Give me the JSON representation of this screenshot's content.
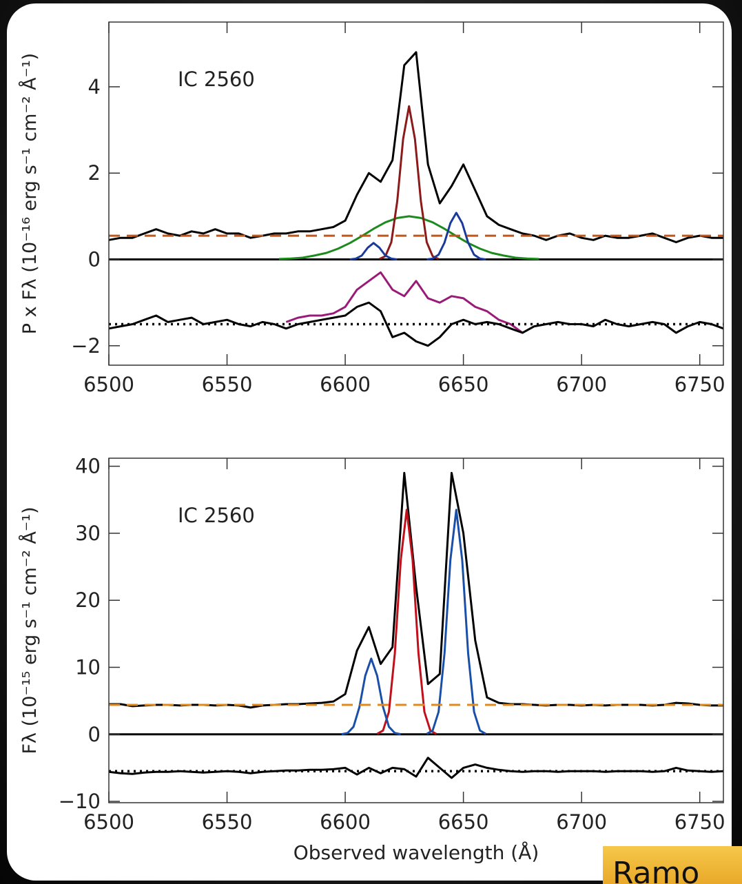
{
  "chart_data": [
    {
      "type": "line",
      "annotation": "IC 2560",
      "ylabel": "P x Fλ (10⁻¹⁶ erg s⁻¹ cm⁻² Å⁻¹)",
      "xlim": [
        6500,
        6760
      ],
      "ylim": [
        -2.45,
        5.5
      ],
      "xticks": [
        6500,
        6550,
        6600,
        6650,
        6700,
        6750
      ],
      "yticks": [
        {
          "value": -2,
          "label": "−2"
        },
        0,
        2,
        4
      ],
      "x": [
        6500,
        6505,
        6510,
        6515,
        6520,
        6525,
        6530,
        6535,
        6540,
        6545,
        6550,
        6555,
        6560,
        6565,
        6570,
        6575,
        6580,
        6585,
        6590,
        6595,
        6600,
        6605,
        6610,
        6615,
        6620,
        6625,
        6630,
        6635,
        6640,
        6645,
        6650,
        6655,
        6660,
        6665,
        6670,
        6675,
        6680,
        6685,
        6690,
        6695,
        6700,
        6705,
        6710,
        6715,
        6720,
        6725,
        6730,
        6735,
        6740,
        6745,
        6750,
        6755,
        6760
      ],
      "series": [
        {
          "color": "#000000",
          "x": [
            6500,
            6760
          ],
          "values": [
            0,
            0
          ]
        },
        {
          "color": "#000000",
          "values": [
            0.45,
            0.5,
            0.5,
            0.6,
            0.7,
            0.6,
            0.55,
            0.65,
            0.6,
            0.7,
            0.6,
            0.6,
            0.5,
            0.55,
            0.6,
            0.6,
            0.65,
            0.65,
            0.7,
            0.75,
            0.9,
            1.5,
            2.0,
            1.8,
            2.3,
            4.5,
            4.8,
            2.2,
            1.3,
            1.7,
            2.2,
            1.6,
            1.0,
            0.8,
            0.7,
            0.6,
            0.55,
            0.45,
            0.55,
            0.6,
            0.5,
            0.45,
            0.55,
            0.5,
            0.5,
            0.55,
            0.6,
            0.5,
            0.4,
            0.5,
            0.55,
            0.5,
            0.5
          ]
        },
        {
          "color": "#1c8a1c",
          "x": [
            6572,
            6577,
            6582,
            6587,
            6592,
            6597,
            6602,
            6607,
            6612,
            6617,
            6622,
            6627,
            6632,
            6637,
            6642,
            6647,
            6652,
            6657,
            6662,
            6667,
            6672,
            6677,
            6682
          ],
          "values": [
            0.01,
            0.02,
            0.04,
            0.09,
            0.15,
            0.25,
            0.38,
            0.54,
            0.71,
            0.86,
            0.96,
            1.0,
            0.96,
            0.86,
            0.71,
            0.54,
            0.38,
            0.25,
            0.15,
            0.09,
            0.04,
            0.02,
            0.01
          ]
        },
        {
          "color": "#8b1a1a",
          "x": [
            6614.5,
            6617,
            6619.5,
            6622,
            6624.5,
            6627,
            6629.5,
            6632,
            6634.5,
            6637,
            6639.5
          ],
          "values": [
            0.01,
            0.075,
            0.4,
            1.35,
            2.79,
            3.55,
            2.79,
            1.35,
            0.4,
            0.075,
            0.01
          ]
        },
        {
          "color": "#1a3a9a",
          "x": [
            6602,
            6604.5,
            6607,
            6609.5,
            6612,
            6614.5,
            6617,
            6619.5,
            6622,
            6630,
            6634.5,
            6637,
            6639.5,
            6642,
            6644.5,
            6647,
            6649.5,
            6652,
            6654.5,
            6657,
            6659.5
          ],
          "values": [
            0,
            0.02,
            0.09,
            0.27,
            0.38,
            0.27,
            0.09,
            0.02,
            0,
            null,
            0,
            0.02,
            0.11,
            0.39,
            0.84,
            1.08,
            0.84,
            0.39,
            0.11,
            0.02,
            0
          ]
        },
        {
          "color": "#c0561a",
          "dash": "dashed",
          "x": [
            6500,
            6760
          ],
          "values": [
            0.55,
            0.55
          ]
        },
        {
          "color": "#9a1a78",
          "values": [
            null,
            null,
            null,
            null,
            null,
            null,
            null,
            null,
            null,
            null,
            null,
            null,
            null,
            null,
            null,
            -1.45,
            -1.35,
            -1.3,
            -1.3,
            -1.25,
            -1.1,
            -0.7,
            -0.5,
            -0.3,
            -0.7,
            -0.85,
            -0.5,
            -0.9,
            -1.0,
            -0.85,
            -0.9,
            -1.1,
            -1.2,
            -1.4,
            -1.5,
            -1.7,
            null,
            null,
            null,
            null,
            null,
            null,
            null,
            null,
            null,
            null,
            null,
            null,
            null,
            null,
            null,
            null,
            null
          ]
        },
        {
          "color": "#000000",
          "values": [
            -1.6,
            -1.55,
            -1.5,
            -1.4,
            -1.3,
            -1.45,
            -1.4,
            -1.35,
            -1.5,
            -1.45,
            -1.4,
            -1.5,
            -1.55,
            -1.45,
            -1.5,
            -1.6,
            -1.5,
            -1.45,
            -1.4,
            -1.35,
            -1.3,
            -1.1,
            -1.0,
            -1.2,
            -1.8,
            -1.7,
            -1.9,
            -2.0,
            -1.8,
            -1.5,
            -1.4,
            -1.5,
            -1.45,
            -1.5,
            -1.6,
            -1.7,
            -1.55,
            -1.5,
            -1.45,
            -1.5,
            -1.5,
            -1.55,
            -1.4,
            -1.5,
            -1.55,
            -1.5,
            -1.45,
            -1.5,
            -1.7,
            -1.55,
            -1.45,
            -1.5,
            -1.6
          ]
        },
        {
          "color": "#000000",
          "dash": "dotted",
          "x": [
            6500,
            6760
          ],
          "values": [
            -1.5,
            -1.5
          ]
        }
      ]
    },
    {
      "type": "line",
      "annotation": "IC 2560",
      "ylabel": "Fλ (10⁻¹⁵ erg s⁻¹ cm⁻² Å⁻¹)",
      "xlabel": "Observed wavelength (Å)",
      "xlim": [
        6500,
        6760
      ],
      "ylim": [
        -10.2,
        41.2
      ],
      "xticks": [
        6500,
        6550,
        6600,
        6650,
        6700,
        6750
      ],
      "yticks": [
        {
          "value": -10,
          "label": "−10"
        },
        0,
        10,
        20,
        30,
        40
      ],
      "x": [
        6500,
        6505,
        6510,
        6515,
        6520,
        6525,
        6530,
        6535,
        6540,
        6545,
        6550,
        6555,
        6560,
        6565,
        6570,
        6575,
        6580,
        6585,
        6590,
        6595,
        6600,
        6605,
        6610,
        6615,
        6620,
        6625,
        6630,
        6635,
        6640,
        6645,
        6650,
        6655,
        6660,
        6665,
        6670,
        6675,
        6680,
        6685,
        6690,
        6695,
        6700,
        6705,
        6710,
        6715,
        6720,
        6725,
        6730,
        6735,
        6740,
        6745,
        6750,
        6755,
        6760
      ],
      "series": [
        {
          "color": "#000000",
          "x": [
            6500,
            6760
          ],
          "values": [
            0,
            0
          ]
        },
        {
          "color": "#000000",
          "values": [
            4.5,
            4.5,
            4.2,
            4.3,
            4.4,
            4.4,
            4.3,
            4.4,
            4.4,
            4.3,
            4.4,
            4.3,
            4.0,
            4.3,
            4.4,
            4.5,
            4.5,
            4.6,
            4.7,
            4.9,
            6.0,
            12.5,
            16,
            10.5,
            13,
            39,
            22,
            7.5,
            9,
            39,
            30,
            14,
            5.5,
            4.7,
            4.5,
            4.5,
            4.4,
            4.3,
            4.4,
            4.4,
            4.3,
            4.4,
            4.3,
            4.4,
            4.4,
            4.4,
            4.3,
            4.4,
            4.7,
            4.6,
            4.4,
            4.3,
            4.3
          ]
        },
        {
          "color": "#c0101a",
          "x": [
            6613.5,
            6616,
            6618.5,
            6621,
            6623.5,
            6626,
            6628.5,
            6631,
            6633.5,
            6636,
            6638.5
          ],
          "values": [
            0.06,
            0.57,
            3.35,
            12.1,
            26.0,
            33.5,
            26.0,
            12.1,
            3.35,
            0.57,
            0.06
          ]
        },
        {
          "color": "#1a4fa8",
          "x": [
            6598.5,
            6601,
            6603.5,
            6606,
            6608.5,
            6611,
            6613.5,
            6616,
            6618.5,
            6621,
            6623.5,
            6630,
            6634.5,
            6637,
            6639.5,
            6642,
            6644.5,
            6647,
            6649.5,
            6652,
            6654.5,
            6657,
            6659.5
          ],
          "values": [
            0.02,
            0.19,
            1.13,
            4.07,
            8.76,
            11.3,
            8.76,
            4.07,
            1.13,
            0.19,
            0.02,
            null,
            0.06,
            0.57,
            3.35,
            12.1,
            26.0,
            33.5,
            26.0,
            12.1,
            3.35,
            0.57,
            0.06
          ]
        },
        {
          "color": "#e08a1e",
          "dash": "dashed",
          "x": [
            6500,
            6760
          ],
          "values": [
            4.4,
            4.4
          ]
        },
        {
          "color": "#000000",
          "values": [
            -5.6,
            -5.8,
            -5.9,
            -5.7,
            -5.6,
            -5.6,
            -5.5,
            -5.6,
            -5.7,
            -5.6,
            -5.5,
            -5.6,
            -5.8,
            -5.6,
            -5.5,
            -5.4,
            -5.4,
            -5.3,
            -5.3,
            -5.2,
            -5.0,
            -6.0,
            -5.0,
            -5.8,
            -5.0,
            -5.2,
            -6.3,
            -3.5,
            -5.0,
            -6.5,
            -5.0,
            -4.5,
            -5.0,
            -5.3,
            -5.5,
            -5.6,
            -5.5,
            -5.5,
            -5.6,
            -5.5,
            -5.5,
            -5.5,
            -5.6,
            -5.5,
            -5.5,
            -5.5,
            -5.6,
            -5.5,
            -5.0,
            -5.4,
            -5.5,
            -5.6,
            -5.5
          ]
        },
        {
          "color": "#000000",
          "dash": "dotted",
          "x": [
            6500,
            6760
          ],
          "values": [
            -5.5,
            -5.5
          ]
        }
      ]
    }
  ],
  "footer_label": "Ramo"
}
